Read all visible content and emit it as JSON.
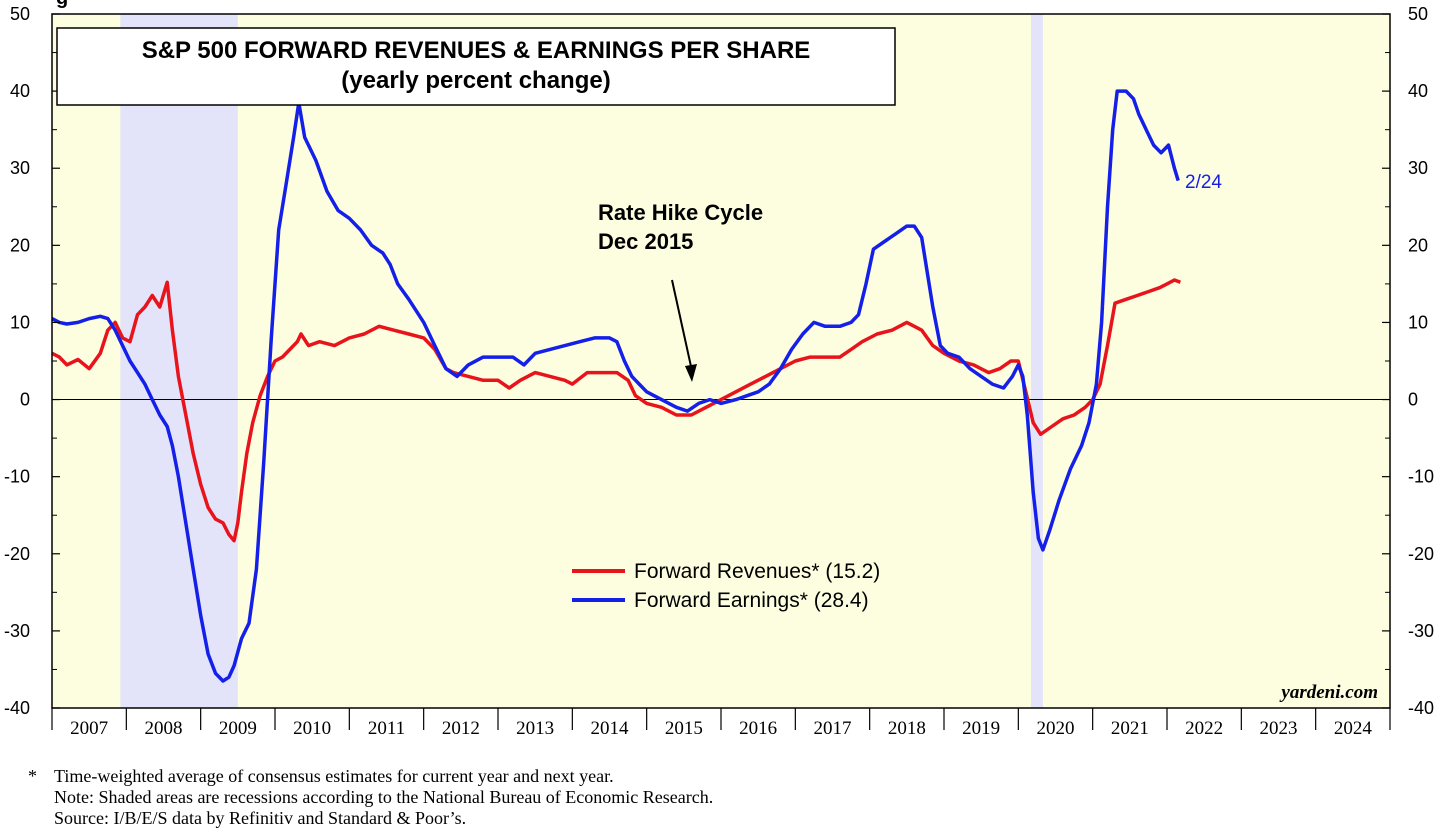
{
  "chart_data": {
    "type": "line",
    "title": "S&P 500 FORWARD REVENUES & EARNINGS PER SHARE",
    "subtitle": "(yearly percent change)",
    "ylim": [
      -40,
      50
    ],
    "y_ticks": [
      "50",
      "40",
      "30",
      "20",
      "10",
      "0",
      "-10",
      "-20",
      "-30",
      "-40"
    ],
    "x_categories": [
      "2007",
      "2008",
      "2009",
      "2010",
      "2011",
      "2012",
      "2013",
      "2014",
      "2015",
      "2016",
      "2017",
      "2018",
      "2019",
      "2020",
      "2021",
      "2022",
      "2023",
      "2024"
    ],
    "xlim": [
      2007.0,
      2025.0
    ],
    "recessions": [
      [
        2007.92,
        2009.5
      ],
      [
        2020.17,
        2020.33
      ]
    ],
    "grid": false,
    "legend_position": "lower-center",
    "series": [
      {
        "name": "Forward Revenues* (15.2)",
        "color": "#e8141b",
        "points": [
          [
            2007.0,
            6
          ],
          [
            2007.1,
            5.5
          ],
          [
            2007.2,
            4.5
          ],
          [
            2007.35,
            5.2
          ],
          [
            2007.5,
            4
          ],
          [
            2007.65,
            6
          ],
          [
            2007.75,
            9
          ],
          [
            2007.85,
            10
          ],
          [
            2007.95,
            8
          ],
          [
            2008.05,
            7.5
          ],
          [
            2008.15,
            11
          ],
          [
            2008.25,
            12
          ],
          [
            2008.35,
            13.5
          ],
          [
            2008.45,
            12
          ],
          [
            2008.55,
            15.2
          ],
          [
            2008.62,
            9
          ],
          [
            2008.7,
            3
          ],
          [
            2008.8,
            -2
          ],
          [
            2008.9,
            -7
          ],
          [
            2009.0,
            -11
          ],
          [
            2009.1,
            -14
          ],
          [
            2009.2,
            -15.5
          ],
          [
            2009.3,
            -16
          ],
          [
            2009.38,
            -17.5
          ],
          [
            2009.45,
            -18.3
          ],
          [
            2009.5,
            -16
          ],
          [
            2009.55,
            -12
          ],
          [
            2009.62,
            -7
          ],
          [
            2009.7,
            -3
          ],
          [
            2009.8,
            0.5
          ],
          [
            2009.9,
            3
          ],
          [
            2010.0,
            5
          ],
          [
            2010.1,
            5.5
          ],
          [
            2010.2,
            6.5
          ],
          [
            2010.3,
            7.5
          ],
          [
            2010.35,
            8.5
          ],
          [
            2010.45,
            7
          ],
          [
            2010.6,
            7.5
          ],
          [
            2010.8,
            7
          ],
          [
            2011.0,
            8
          ],
          [
            2011.2,
            8.5
          ],
          [
            2011.4,
            9.5
          ],
          [
            2011.6,
            9
          ],
          [
            2011.8,
            8.5
          ],
          [
            2012.0,
            8
          ],
          [
            2012.15,
            6.5
          ],
          [
            2012.3,
            4
          ],
          [
            2012.4,
            3.5
          ],
          [
            2012.6,
            3
          ],
          [
            2012.8,
            2.5
          ],
          [
            2013.0,
            2.5
          ],
          [
            2013.15,
            1.5
          ],
          [
            2013.3,
            2.5
          ],
          [
            2013.5,
            3.5
          ],
          [
            2013.7,
            3
          ],
          [
            2013.9,
            2.5
          ],
          [
            2014.0,
            2
          ],
          [
            2014.2,
            3.5
          ],
          [
            2014.4,
            3.5
          ],
          [
            2014.6,
            3.5
          ],
          [
            2014.75,
            2.5
          ],
          [
            2014.85,
            0.5
          ],
          [
            2015.0,
            -0.5
          ],
          [
            2015.2,
            -1
          ],
          [
            2015.4,
            -2
          ],
          [
            2015.6,
            -2
          ],
          [
            2015.8,
            -1
          ],
          [
            2016.0,
            0
          ],
          [
            2016.2,
            1
          ],
          [
            2016.4,
            2
          ],
          [
            2016.6,
            3
          ],
          [
            2016.8,
            4
          ],
          [
            2017.0,
            5
          ],
          [
            2017.2,
            5.5
          ],
          [
            2017.4,
            5.5
          ],
          [
            2017.6,
            5.5
          ],
          [
            2017.75,
            6.5
          ],
          [
            2017.9,
            7.5
          ],
          [
            2018.1,
            8.5
          ],
          [
            2018.3,
            9
          ],
          [
            2018.5,
            10
          ],
          [
            2018.6,
            9.5
          ],
          [
            2018.7,
            9
          ],
          [
            2018.85,
            7
          ],
          [
            2019.0,
            6
          ],
          [
            2019.2,
            5
          ],
          [
            2019.4,
            4.5
          ],
          [
            2019.6,
            3.5
          ],
          [
            2019.75,
            4
          ],
          [
            2019.9,
            5
          ],
          [
            2020.0,
            5
          ],
          [
            2020.1,
            1
          ],
          [
            2020.2,
            -3
          ],
          [
            2020.3,
            -4.5
          ],
          [
            2020.45,
            -3.5
          ],
          [
            2020.6,
            -2.5
          ],
          [
            2020.75,
            -2
          ],
          [
            2020.9,
            -1
          ],
          [
            2021.0,
            0
          ],
          [
            2021.1,
            2
          ],
          [
            2021.2,
            7
          ],
          [
            2021.3,
            12.5
          ],
          [
            2021.45,
            13
          ],
          [
            2021.6,
            13.5
          ],
          [
            2021.75,
            14
          ],
          [
            2021.9,
            14.5
          ],
          [
            2022.0,
            15
          ],
          [
            2022.1,
            15.5
          ],
          [
            2022.18,
            15.2
          ]
        ]
      },
      {
        "name": "Forward Earnings* (28.4)",
        "color": "#1420e8",
        "points": [
          [
            2007.0,
            10.5
          ],
          [
            2007.1,
            10
          ],
          [
            2007.2,
            9.8
          ],
          [
            2007.35,
            10
          ],
          [
            2007.5,
            10.5
          ],
          [
            2007.65,
            10.8
          ],
          [
            2007.75,
            10.5
          ],
          [
            2007.85,
            9
          ],
          [
            2007.95,
            7
          ],
          [
            2008.05,
            5
          ],
          [
            2008.15,
            3.5
          ],
          [
            2008.25,
            2
          ],
          [
            2008.35,
            0
          ],
          [
            2008.45,
            -2
          ],
          [
            2008.55,
            -3.5
          ],
          [
            2008.62,
            -6
          ],
          [
            2008.7,
            -10
          ],
          [
            2008.8,
            -16
          ],
          [
            2008.9,
            -22
          ],
          [
            2009.0,
            -28
          ],
          [
            2009.1,
            -33
          ],
          [
            2009.2,
            -35.5
          ],
          [
            2009.3,
            -36.5
          ],
          [
            2009.38,
            -36
          ],
          [
            2009.45,
            -34.5
          ],
          [
            2009.55,
            -31
          ],
          [
            2009.65,
            -29
          ],
          [
            2009.75,
            -22
          ],
          [
            2009.85,
            -8
          ],
          [
            2009.95,
            8
          ],
          [
            2010.05,
            22
          ],
          [
            2010.15,
            28
          ],
          [
            2010.25,
            34
          ],
          [
            2010.32,
            38.5
          ],
          [
            2010.4,
            34
          ],
          [
            2010.55,
            31
          ],
          [
            2010.7,
            27
          ],
          [
            2010.85,
            24.5
          ],
          [
            2011.0,
            23.5
          ],
          [
            2011.15,
            22
          ],
          [
            2011.3,
            20
          ],
          [
            2011.45,
            19
          ],
          [
            2011.55,
            17.5
          ],
          [
            2011.65,
            15
          ],
          [
            2011.8,
            13
          ],
          [
            2012.0,
            10
          ],
          [
            2012.15,
            7
          ],
          [
            2012.3,
            4
          ],
          [
            2012.45,
            3
          ],
          [
            2012.6,
            4.5
          ],
          [
            2012.8,
            5.5
          ],
          [
            2013.0,
            5.5
          ],
          [
            2013.2,
            5.5
          ],
          [
            2013.35,
            4.5
          ],
          [
            2013.5,
            6
          ],
          [
            2013.7,
            6.5
          ],
          [
            2013.9,
            7
          ],
          [
            2014.1,
            7.5
          ],
          [
            2014.3,
            8
          ],
          [
            2014.5,
            8
          ],
          [
            2014.6,
            7.5
          ],
          [
            2014.7,
            5
          ],
          [
            2014.8,
            3
          ],
          [
            2014.9,
            2
          ],
          [
            2015.0,
            1
          ],
          [
            2015.2,
            0
          ],
          [
            2015.4,
            -1
          ],
          [
            2015.55,
            -1.5
          ],
          [
            2015.7,
            -0.5
          ],
          [
            2015.85,
            0
          ],
          [
            2016.0,
            -0.5
          ],
          [
            2016.2,
            0
          ],
          [
            2016.35,
            0.5
          ],
          [
            2016.5,
            1
          ],
          [
            2016.65,
            2
          ],
          [
            2016.8,
            4
          ],
          [
            2016.95,
            6.5
          ],
          [
            2017.1,
            8.5
          ],
          [
            2017.25,
            10
          ],
          [
            2017.4,
            9.5
          ],
          [
            2017.6,
            9.5
          ],
          [
            2017.75,
            10
          ],
          [
            2017.85,
            11
          ],
          [
            2017.95,
            15
          ],
          [
            2018.05,
            19.5
          ],
          [
            2018.2,
            20.5
          ],
          [
            2018.35,
            21.5
          ],
          [
            2018.5,
            22.5
          ],
          [
            2018.6,
            22.5
          ],
          [
            2018.7,
            21
          ],
          [
            2018.75,
            18
          ],
          [
            2018.85,
            12
          ],
          [
            2018.95,
            7
          ],
          [
            2019.05,
            6
          ],
          [
            2019.2,
            5.5
          ],
          [
            2019.35,
            4
          ],
          [
            2019.5,
            3
          ],
          [
            2019.65,
            2
          ],
          [
            2019.8,
            1.5
          ],
          [
            2019.92,
            3
          ],
          [
            2020.0,
            4.5
          ],
          [
            2020.06,
            3
          ],
          [
            2020.12,
            -2
          ],
          [
            2020.2,
            -12
          ],
          [
            2020.27,
            -18
          ],
          [
            2020.33,
            -19.5
          ],
          [
            2020.42,
            -17
          ],
          [
            2020.55,
            -13
          ],
          [
            2020.7,
            -9
          ],
          [
            2020.85,
            -6
          ],
          [
            2020.95,
            -3
          ],
          [
            2021.05,
            2
          ],
          [
            2021.12,
            10
          ],
          [
            2021.2,
            25
          ],
          [
            2021.27,
            35
          ],
          [
            2021.33,
            40
          ],
          [
            2021.45,
            40
          ],
          [
            2021.55,
            39
          ],
          [
            2021.62,
            37
          ],
          [
            2021.72,
            35
          ],
          [
            2021.82,
            33
          ],
          [
            2021.92,
            32
          ],
          [
            2022.02,
            33
          ],
          [
            2022.1,
            30
          ],
          [
            2022.15,
            28.4
          ]
        ]
      }
    ],
    "annotations": {
      "rate_hike_line1": "Rate Hike Cycle",
      "rate_hike_line2": "Dec 2015",
      "end_date": "2/24",
      "watermark": "yardeni.com",
      "top_left_fragment": "g"
    }
  },
  "footnotes": {
    "star": "*",
    "line1": "Time-weighted average of consensus estimates for current year and next year.",
    "line2": "Note: Shaded areas are recessions according to the National Bureau of Economic Research.",
    "line3": "Source: I/B/E/S data by Refinitiv and Standard & Poor’s."
  }
}
